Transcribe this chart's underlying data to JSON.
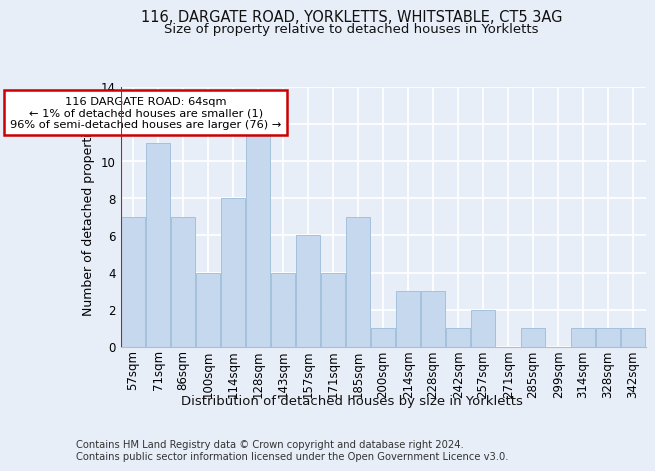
{
  "title1": "116, DARGATE ROAD, YORKLETTS, WHITSTABLE, CT5 3AG",
  "title2": "Size of property relative to detached houses in Yorkletts",
  "xlabel": "Distribution of detached houses by size in Yorkletts",
  "ylabel": "Number of detached properties",
  "categories": [
    "57sqm",
    "71sqm",
    "86sqm",
    "100sqm",
    "114sqm",
    "128sqm",
    "143sqm",
    "157sqm",
    "171sqm",
    "185sqm",
    "200sqm",
    "214sqm",
    "228sqm",
    "242sqm",
    "257sqm",
    "271sqm",
    "285sqm",
    "299sqm",
    "314sqm",
    "328sqm",
    "342sqm"
  ],
  "values": [
    7,
    11,
    7,
    4,
    8,
    13,
    4,
    6,
    4,
    7,
    1,
    3,
    3,
    1,
    2,
    0,
    1,
    0,
    1,
    1,
    1
  ],
  "bar_color": "#c5d8ee",
  "bar_edge_color": "#9bbcd8",
  "redline_x": -0.5,
  "annotation_text": "116 DARGATE ROAD: 64sqm\n← 1% of detached houses are smaller (1)\n96% of semi-detached houses are larger (76) →",
  "annotation_box_color": "#ffffff",
  "annotation_box_edge": "#cc0000",
  "footer": "Contains HM Land Registry data © Crown copyright and database right 2024.\nContains public sector information licensed under the Open Government Licence v3.0.",
  "ylim": [
    0,
    14
  ],
  "yticks": [
    0,
    2,
    4,
    6,
    8,
    10,
    12,
    14
  ],
  "bg_color": "#e8eef8",
  "plot_bg_color": "#e8eef8",
  "grid_color": "#ffffff",
  "title1_fontsize": 10.5,
  "title2_fontsize": 9.5,
  "tick_fontsize": 8.5,
  "ylabel_fontsize": 9,
  "xlabel_fontsize": 9.5
}
